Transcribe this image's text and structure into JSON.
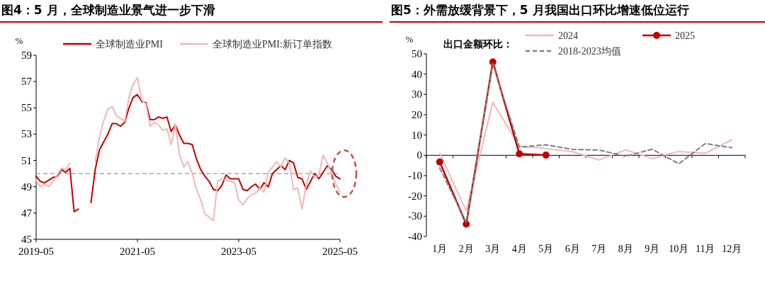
{
  "chart_data": [
    {
      "type": "line",
      "title": "图4：5 月，全球制造业景气进一步下滑",
      "ylabel": "%",
      "x": [
        "2019-05",
        "2019-06",
        "2019-07",
        "2019-08",
        "2019-09",
        "2019-10",
        "2019-11",
        "2019-12",
        "2020-01",
        "2020-02",
        "2020-03",
        "2020-06",
        "2020-07",
        "2020-08",
        "2020-09",
        "2020-10",
        "2020-11",
        "2020-12",
        "2021-01",
        "2021-02",
        "2021-03",
        "2021-04",
        "2021-05",
        "2021-06",
        "2021-07",
        "2021-08",
        "2021-09",
        "2021-10",
        "2021-11",
        "2021-12",
        "2022-01",
        "2022-02",
        "2022-03",
        "2022-04",
        "2022-05",
        "2022-06",
        "2022-07",
        "2022-08",
        "2022-09",
        "2022-10",
        "2022-11",
        "2022-12",
        "2023-01",
        "2023-02",
        "2023-03",
        "2023-04",
        "2023-05",
        "2023-06",
        "2023-07",
        "2023-08",
        "2023-09",
        "2023-10",
        "2023-11",
        "2023-12",
        "2024-01",
        "2024-02",
        "2024-03",
        "2024-04",
        "2024-05",
        "2024-06",
        "2024-07",
        "2024-08",
        "2024-09",
        "2024-10",
        "2024-11",
        "2024-12",
        "2025-01",
        "2025-02",
        "2025-03",
        "2025-04",
        "2025-05"
      ],
      "series": [
        {
          "name": "全球制造业PMI",
          "color": "#c00000",
          "values": [
            49.8,
            49.4,
            49.3,
            49.5,
            49.7,
            49.8,
            50.3,
            50.1,
            50.4,
            47.1,
            47.3,
            47.8,
            50.3,
            51.8,
            52.4,
            53.0,
            53.8,
            53.8,
            53.6,
            53.9,
            55.0,
            55.8,
            56.0,
            55.5,
            55.4,
            54.1,
            54.1,
            54.3,
            54.2,
            54.3,
            53.2,
            53.7,
            52.9,
            52.3,
            52.3,
            52.2,
            51.1,
            50.3,
            49.8,
            49.4,
            48.8,
            48.7,
            49.1,
            49.9,
            49.6,
            49.6,
            49.6,
            48.8,
            48.7,
            49.0,
            49.2,
            48.8,
            49.3,
            49.0,
            50.0,
            50.3,
            50.6,
            50.3,
            51.0,
            50.8,
            49.7,
            49.6,
            48.8,
            49.4,
            50.0,
            49.6,
            50.1,
            50.6,
            50.3,
            49.8,
            49.6
          ]
        },
        {
          "name": "全球制造业PMI:新订单指数",
          "color": "#f0b8b8",
          "x": [
            "2019-05",
            "2019-06",
            "2019-07",
            "2019-08",
            "2019-09",
            "2019-10",
            "2019-11",
            "2019-12",
            "2020-01",
            "2020-07",
            "2020-08",
            "2020-09",
            "2020-10",
            "2020-11",
            "2020-12",
            "2021-01",
            "2021-02",
            "2021-03",
            "2021-04",
            "2021-05",
            "2021-06",
            "2021-07",
            "2021-08",
            "2021-09",
            "2021-10",
            "2021-11",
            "2021-12",
            "2022-01",
            "2022-02",
            "2022-03",
            "2022-04",
            "2022-05",
            "2022-06",
            "2022-07",
            "2022-08",
            "2022-09",
            "2022-10",
            "2022-11",
            "2022-12",
            "2023-01",
            "2023-02",
            "2023-03",
            "2023-04",
            "2023-05",
            "2023-06",
            "2023-07",
            "2023-08",
            "2023-09",
            "2023-10",
            "2023-11",
            "2023-12",
            "2024-01",
            "2024-02",
            "2024-03",
            "2024-04",
            "2024-05",
            "2024-06",
            "2024-07",
            "2024-08",
            "2024-09",
            "2024-10",
            "2024-11",
            "2024-12",
            "2025-01",
            "2025-02",
            "2025-03",
            "2025-04",
            "2025-05"
          ],
          "values": [
            49.5,
            49.0,
            49.2,
            49.0,
            49.4,
            49.9,
            50.4,
            50.3,
            50.8,
            50.9,
            52.8,
            54.0,
            54.9,
            55.1,
            54.4,
            54.2,
            54.0,
            55.8,
            56.8,
            57.3,
            55.6,
            55.3,
            53.6,
            53.9,
            53.7,
            53.3,
            53.4,
            52.2,
            53.7,
            51.4,
            50.5,
            50.9,
            50.0,
            48.8,
            48.0,
            46.9,
            46.7,
            46.4,
            49.4,
            49.6,
            49.5,
            49.4,
            49.3,
            48.0,
            47.6,
            48.1,
            48.4,
            48.5,
            48.9,
            48.6,
            50.1,
            50.5,
            50.9,
            50.5,
            51.2,
            50.8,
            48.8,
            48.9,
            47.3,
            49.2,
            50.2,
            49.7,
            49.9,
            51.4,
            50.8,
            50.0,
            49.2,
            48.6
          ]
        }
      ],
      "xlim": [
        "2019-05",
        "2025-05"
      ],
      "xticks": [
        "2019-05",
        "2021-05",
        "2023-05",
        "2025-05"
      ],
      "ylim": [
        45,
        59
      ],
      "yticks": [
        45,
        47,
        49,
        51,
        53,
        55,
        57,
        59
      ],
      "ref_lines": [
        {
          "axis": "y",
          "value": 50,
          "color": "#a6a6a6",
          "line_style": "dashed"
        }
      ],
      "legend": "top"
    },
    {
      "type": "line",
      "title": "图5：外需放缓背景下，5 月我国出口环比增速低位运行",
      "ylabel": "%",
      "legend_title": "出口金额环比：",
      "categories": [
        "1月",
        "2月",
        "3月",
        "4月",
        "5月",
        "6月",
        "7月",
        "8月",
        "9月",
        "10月",
        "11月",
        "12月"
      ],
      "series": [
        {
          "name": "2024",
          "color": "#f0b8b8",
          "values": [
            1.0,
            -27.5,
            26,
            4.5,
            3.3,
            1.8,
            -2.3,
            2.7,
            -1.6,
            1.9,
            1.0,
            7.7
          ]
        },
        {
          "name": "2025",
          "color": "#c00000",
          "marker": "circle",
          "values": [
            -3.3,
            -33.9,
            46.0,
            0.7,
            0.1,
            null,
            null,
            null,
            null,
            null,
            null,
            null
          ]
        },
        {
          "name": "2018-2023均值",
          "color": "#7f7f7f",
          "line_style": "dashed",
          "values": [
            -6.3,
            -33,
            45,
            4.0,
            5.2,
            2.9,
            2.6,
            -0.5,
            3.0,
            -4.2,
            5.8,
            3.7
          ]
        }
      ],
      "ylim": [
        -40,
        50
      ],
      "yticks": [
        -40,
        -30,
        -20,
        -10,
        0,
        10,
        20,
        30,
        40,
        50
      ],
      "legend": "top"
    }
  ]
}
